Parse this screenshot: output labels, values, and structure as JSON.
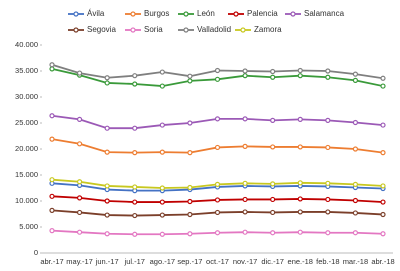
{
  "chart_data": {
    "type": "line",
    "categories": [
      "abr.-17",
      "may.-17",
      "jun.-17",
      "jul.-17",
      "ago.-17",
      "sep.-17",
      "oct.-17",
      "nov.-17",
      "dic.-17",
      "ene.-18",
      "feb.-18",
      "mar.-18",
      "abr.-18"
    ],
    "series": [
      {
        "name": "Ávila",
        "color": "#4472c4",
        "values": [
          13400,
          13000,
          12200,
          12000,
          12000,
          12200,
          12700,
          12900,
          12800,
          12900,
          12800,
          12600,
          12400
        ]
      },
      {
        "name": "Burgos",
        "color": "#ed7d31",
        "values": [
          21900,
          21000,
          19400,
          19300,
          19400,
          19300,
          20300,
          20500,
          20400,
          20400,
          20300,
          20000,
          19300
        ]
      },
      {
        "name": "León",
        "color": "#3a9a3a",
        "values": [
          35400,
          34200,
          32700,
          32500,
          32100,
          33100,
          33400,
          34100,
          33800,
          34100,
          33800,
          33200,
          32100
        ]
      },
      {
        "name": "Palencia",
        "color": "#c00000",
        "values": [
          10900,
          10600,
          10000,
          9800,
          9800,
          9900,
          10200,
          10300,
          10300,
          10400,
          10300,
          10100,
          9800
        ]
      },
      {
        "name": "Salamanca",
        "color": "#9b59b6",
        "values": [
          26400,
          25700,
          24000,
          24000,
          24600,
          25000,
          25800,
          25800,
          25500,
          25700,
          25500,
          25100,
          24600
        ]
      },
      {
        "name": "Segovia",
        "color": "#7b3f2a",
        "values": [
          8200,
          7800,
          7300,
          7200,
          7300,
          7400,
          7800,
          7900,
          7800,
          7900,
          7900,
          7700,
          7400
        ]
      },
      {
        "name": "Soria",
        "color": "#e377c2",
        "values": [
          4300,
          4000,
          3700,
          3600,
          3600,
          3700,
          3900,
          4000,
          3900,
          4000,
          3900,
          3900,
          3700
        ]
      },
      {
        "name": "Valladolid",
        "color": "#7f7f7f",
        "values": [
          36200,
          34600,
          33700,
          34100,
          34800,
          34000,
          35100,
          35000,
          34900,
          35100,
          35000,
          34400,
          33600
        ]
      },
      {
        "name": "Zamora",
        "color": "#c8c820",
        "values": [
          14100,
          13700,
          12900,
          12700,
          12500,
          12600,
          13200,
          13400,
          13300,
          13500,
          13400,
          13200,
          12900
        ]
      }
    ],
    "ylim": [
      0,
      40000
    ],
    "yticks": [
      0,
      {
        "value": 5000,
        "label": "5.000"
      },
      {
        "value": 10000,
        "label": "10.000"
      },
      {
        "value": 15000,
        "label": "15.000"
      },
      {
        "value": 20000,
        "label": "20.000"
      },
      {
        "value": 25000,
        "label": "25.000"
      },
      {
        "value": 30000,
        "label": "30.000"
      },
      {
        "value": 35000,
        "label": "35.000"
      },
      {
        "value": 40000,
        "label": "40.000"
      }
    ],
    "grid": false
  }
}
